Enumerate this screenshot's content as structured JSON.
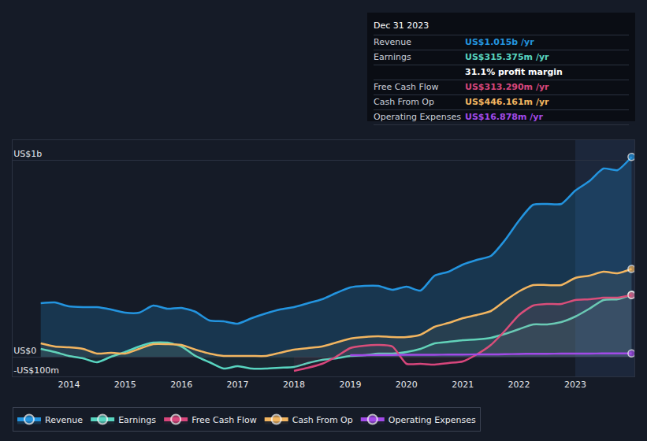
{
  "chart_data": {
    "type": "area",
    "x": [
      2013.5,
      2013.75,
      2014,
      2014.25,
      2014.5,
      2014.75,
      2015,
      2015.25,
      2015.5,
      2015.75,
      2016,
      2016.25,
      2016.5,
      2016.75,
      2017,
      2017.25,
      2017.5,
      2017.75,
      2018,
      2018.25,
      2018.5,
      2018.75,
      2019,
      2019.25,
      2019.5,
      2019.75,
      2020,
      2020.25,
      2020.5,
      2020.75,
      2021,
      2021.25,
      2021.5,
      2021.75,
      2022,
      2022.25,
      2022.5,
      2022.75,
      2023,
      2023.25,
      2023.5,
      2023.75,
      2024
    ],
    "series": [
      {
        "name": "Revenue",
        "color": "#2394df",
        "values": [
          272,
          276,
          256,
          252,
          252,
          240,
          224,
          224,
          260,
          244,
          248,
          228,
          184,
          180,
          168,
          196,
          220,
          240,
          252,
          272,
          292,
          324,
          352,
          360,
          360,
          340,
          356,
          336,
          412,
          432,
          468,
          492,
          512,
          592,
          692,
          772,
          776,
          776,
          844,
          892,
          956,
          948,
          1015
        ]
      },
      {
        "name": "Earnings",
        "color": "#58d5c0",
        "values": [
          40,
          24,
          4,
          -8,
          -28,
          0,
          24,
          52,
          72,
          72,
          52,
          4,
          -28,
          -60,
          -48,
          -60,
          -60,
          -56,
          -52,
          -32,
          -16,
          -8,
          4,
          8,
          16,
          16,
          24,
          40,
          68,
          76,
          84,
          88,
          96,
          116,
          140,
          164,
          164,
          176,
          204,
          244,
          288,
          292,
          315
        ]
      },
      {
        "name": "Free Cash Flow",
        "color": "#d8467c",
        "values": [
          null,
          null,
          null,
          null,
          null,
          null,
          null,
          null,
          null,
          null,
          null,
          null,
          null,
          null,
          null,
          null,
          null,
          null,
          -72,
          -56,
          -36,
          0,
          44,
          56,
          60,
          52,
          -36,
          -36,
          -40,
          -32,
          -24,
          12,
          60,
          132,
          212,
          260,
          268,
          268,
          288,
          292,
          300,
          300,
          313
        ]
      },
      {
        "name": "Cash From Op",
        "color": "#f2b560",
        "values": [
          68,
          52,
          48,
          40,
          16,
          20,
          16,
          40,
          64,
          64,
          60,
          36,
          16,
          4,
          4,
          4,
          4,
          20,
          36,
          44,
          52,
          72,
          92,
          100,
          104,
          100,
          100,
          112,
          152,
          172,
          196,
          212,
          232,
          284,
          332,
          364,
          364,
          364,
          400,
          412,
          432,
          424,
          446
        ]
      },
      {
        "name": "Operating Expenses",
        "color": "#a24ae8",
        "values": [
          null,
          null,
          null,
          null,
          null,
          null,
          null,
          null,
          null,
          null,
          null,
          null,
          null,
          null,
          null,
          null,
          null,
          null,
          null,
          null,
          null,
          null,
          8,
          8,
          9,
          9,
          10,
          10,
          10,
          11,
          11,
          12,
          12,
          13,
          14,
          15,
          15,
          16,
          16,
          16,
          17,
          17,
          17
        ]
      }
    ],
    "xlim": [
      2013,
      2024.05
    ],
    "xticks": [
      2014,
      2015,
      2016,
      2017,
      2018,
      2019,
      2020,
      2021,
      2022,
      2023
    ],
    "ylim": [
      -100,
      1100
    ],
    "yticks": [
      {
        "value": -100,
        "label": "-US$100m"
      },
      {
        "value": 0,
        "label": "US$0"
      },
      {
        "value": 1000,
        "label": "US$1b"
      }
    ],
    "grid": true,
    "legend": "bottom",
    "tooltip": {
      "title": "Dec 31 2023",
      "rows": [
        {
          "label": "Revenue",
          "value": "US$1.015b /yr",
          "color": "#2394df"
        },
        {
          "label": "Earnings",
          "value": "US$315.375m /yr",
          "color": "#58d5c0"
        },
        {
          "value": "31.1% profit margin"
        },
        {
          "label": "Free Cash Flow",
          "value": "US$313.290m /yr",
          "color": "#d8467c"
        },
        {
          "label": "Cash From Op",
          "value": "US$446.161m /yr",
          "color": "#f2b560"
        },
        {
          "label": "Operating Expenses",
          "value": "US$16.878m /yr",
          "color": "#a24ae8"
        }
      ]
    }
  }
}
